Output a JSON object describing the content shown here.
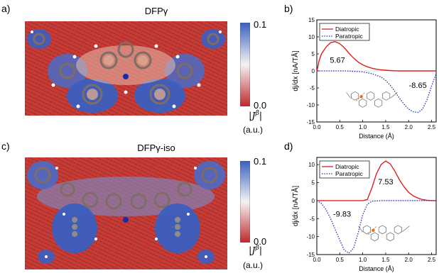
{
  "panels": {
    "a": {
      "label": "a)",
      "title": "DFPγ"
    },
    "b": {
      "label": "b)"
    },
    "c": {
      "label": "c)",
      "title": "DFPγ-iso"
    },
    "d": {
      "label": "d)"
    }
  },
  "colorbar": {
    "max_label": "0.1",
    "min_label": "0.0",
    "quantity_label": "|J^β|",
    "unit_label": "(a.u.)",
    "colors": {
      "high": "#3b5fc0",
      "mid": "#f4f4f4",
      "low": "#c0282d"
    }
  },
  "colors": {
    "diatropic": "#e02020",
    "paratropic": "#2030c0"
  },
  "chart_data": [
    {
      "type": "line",
      "panel": "b",
      "xlabel": "Distance (Å)",
      "ylabel": "dj/dx [nA/TÅ]",
      "xlim": [
        0.0,
        2.6
      ],
      "ylim": [
        -15,
        15
      ],
      "xticks": [
        0.0,
        0.5,
        1.0,
        1.5,
        2.0,
        2.5
      ],
      "yticks": [
        15,
        10,
        5,
        0,
        -5,
        -10,
        -15
      ],
      "legend": {
        "placement": "top-left",
        "entries": [
          "Diatropic",
          "Paratropic"
        ]
      },
      "series": [
        {
          "name": "Diatropic",
          "style": "solid",
          "x": [
            0.0,
            0.05,
            0.1,
            0.2,
            0.3,
            0.4,
            0.5,
            0.6,
            0.7,
            0.8,
            0.9,
            1.0,
            1.1,
            1.2,
            1.3,
            1.4,
            1.5,
            1.6,
            1.7,
            1.8,
            2.0,
            2.2,
            2.4,
            2.6
          ],
          "values": [
            -0.3,
            3.0,
            5.0,
            7.0,
            8.3,
            8.6,
            8.0,
            6.8,
            5.2,
            3.8,
            2.6,
            1.8,
            1.2,
            0.8,
            0.5,
            0.3,
            0.2,
            0.1,
            0.05,
            0.0,
            0.0,
            0.0,
            0.0,
            0.0
          ]
        },
        {
          "name": "Paratropic",
          "style": "dotted",
          "x": [
            0.0,
            0.2,
            0.4,
            0.6,
            0.8,
            1.0,
            1.2,
            1.4,
            1.5,
            1.6,
            1.7,
            1.8,
            1.9,
            2.0,
            2.1,
            2.2,
            2.3,
            2.4,
            2.5,
            2.6
          ],
          "values": [
            0.0,
            0.0,
            0.0,
            0.0,
            -0.1,
            -0.3,
            -0.8,
            -1.8,
            -2.8,
            -4.2,
            -6.0,
            -8.0,
            -9.8,
            -11.2,
            -12.0,
            -12.2,
            -11.3,
            -8.5,
            -4.5,
            -0.8
          ]
        }
      ],
      "annotations": [
        {
          "text": "5.67",
          "x": 0.45,
          "y": 2.4
        },
        {
          "text": "-8.65",
          "x": 2.2,
          "y": -5.0
        }
      ]
    },
    {
      "type": "line",
      "panel": "d",
      "xlabel": "Distance (Å)",
      "ylabel": "dj/dx [nA/TÅ]",
      "xlim": [
        0.0,
        2.6
      ],
      "ylim": [
        -15,
        12
      ],
      "xticks": [
        0.0,
        0.5,
        1.0,
        1.5,
        2.0,
        2.5
      ],
      "yticks": [
        10,
        5,
        0,
        -5,
        -10,
        -15
      ],
      "legend": {
        "placement": "top-left",
        "entries": [
          "Diatropic",
          "Paratropic"
        ]
      },
      "series": [
        {
          "name": "Diatropic",
          "style": "solid",
          "x": [
            0.0,
            0.2,
            0.4,
            0.6,
            0.8,
            1.0,
            1.1,
            1.2,
            1.3,
            1.4,
            1.5,
            1.6,
            1.7,
            1.8,
            1.9,
            2.0,
            2.1,
            2.2,
            2.3,
            2.4,
            2.5,
            2.6
          ],
          "values": [
            0.0,
            0.0,
            0.0,
            0.0,
            0.0,
            0.0,
            0.3,
            3.5,
            7.5,
            10.0,
            11.0,
            10.2,
            8.2,
            5.8,
            3.8,
            2.3,
            1.3,
            0.7,
            0.3,
            0.1,
            0.0,
            0.0
          ]
        },
        {
          "name": "Paratropic",
          "style": "dotted",
          "x": [
            0.0,
            0.1,
            0.2,
            0.3,
            0.4,
            0.5,
            0.6,
            0.7,
            0.8,
            0.9,
            1.0,
            1.1,
            1.2,
            1.4,
            1.6,
            1.8,
            2.0,
            2.2,
            2.4,
            2.6
          ],
          "values": [
            0.0,
            -0.8,
            -2.5,
            -5.0,
            -8.0,
            -11.0,
            -13.8,
            -14.6,
            -13.2,
            -9.0,
            -4.0,
            -1.0,
            -0.2,
            0.0,
            0.0,
            0.0,
            0.0,
            0.0,
            0.0,
            0.0
          ]
        }
      ],
      "annotations": [
        {
          "text": "7.53",
          "x": 1.5,
          "y": 4.5
        },
        {
          "text": "-9.83",
          "x": 0.55,
          "y": -4.5
        }
      ]
    }
  ]
}
